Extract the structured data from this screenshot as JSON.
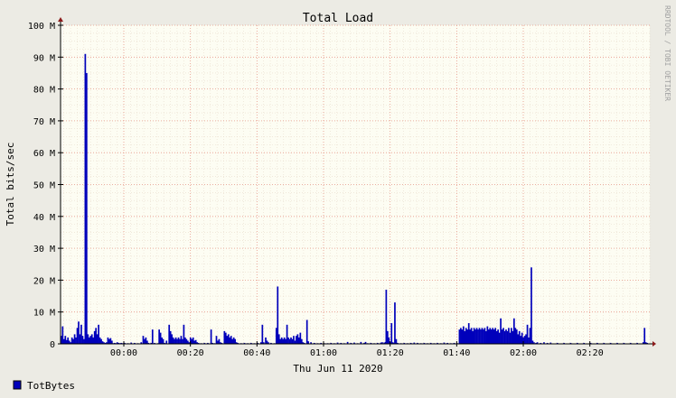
{
  "chart_data": {
    "type": "area",
    "title": "Total Load",
    "ylabel": "Total bits/sec",
    "xlabel": "Thu Jun 11 2020",
    "watermark": "RRDTOOL / TOBI OETIKER",
    "ylim": [
      0,
      100000000
    ],
    "yticks": [
      {
        "v": 0,
        "label": "0"
      },
      {
        "v": 10000000,
        "label": "10 M"
      },
      {
        "v": 20000000,
        "label": "20 M"
      },
      {
        "v": 30000000,
        "label": "30 M"
      },
      {
        "v": 40000000,
        "label": "40 M"
      },
      {
        "v": 50000000,
        "label": "50 M"
      },
      {
        "v": 60000000,
        "label": "60 M"
      },
      {
        "v": 70000000,
        "label": "70 M"
      },
      {
        "v": 80000000,
        "label": "80 M"
      },
      {
        "v": 90000000,
        "label": "90 M"
      },
      {
        "v": 100000000,
        "label": "100 M"
      }
    ],
    "xlim_minutes": [
      -19,
      158
    ],
    "xticks": [
      {
        "m": 0,
        "label": "00:00"
      },
      {
        "m": 20,
        "label": "00:20"
      },
      {
        "m": 40,
        "label": "00:40"
      },
      {
        "m": 60,
        "label": "01:00"
      },
      {
        "m": 80,
        "label": "01:20"
      },
      {
        "m": 100,
        "label": "01:40"
      },
      {
        "m": 120,
        "label": "02:00"
      },
      {
        "m": 140,
        "label": "02:20"
      }
    ],
    "grid": true,
    "series": [
      {
        "name": "TotBytes",
        "color": "#0000bb",
        "points": [
          [
            -19,
            2.5
          ],
          [
            -18.6,
            5.5
          ],
          [
            -18.2,
            1.5
          ],
          [
            -17.8,
            2.5
          ],
          [
            -17.4,
            1.2
          ],
          [
            -17,
            2
          ],
          [
            -16.6,
            1
          ],
          [
            -16.2,
            0.5
          ],
          [
            -15.8,
            2
          ],
          [
            -15.4,
            1.5
          ],
          [
            -15,
            3
          ],
          [
            -14.6,
            2
          ],
          [
            -14.2,
            5
          ],
          [
            -13.8,
            7
          ],
          [
            -13.4,
            3
          ],
          [
            -13,
            6
          ],
          [
            -12.6,
            2.5
          ],
          [
            -12.2,
            1.5
          ],
          [
            -11.8,
            91
          ],
          [
            -11.4,
            85
          ],
          [
            -11,
            3
          ],
          [
            -10.6,
            2
          ],
          [
            -10.2,
            2.5
          ],
          [
            -9.8,
            3
          ],
          [
            -9.4,
            2
          ],
          [
            -9,
            4
          ],
          [
            -8.6,
            5
          ],
          [
            -8.2,
            3
          ],
          [
            -7.8,
            6
          ],
          [
            -7.4,
            2
          ],
          [
            -7,
            1.5
          ],
          [
            -6.6,
            0.8
          ],
          [
            -6.2,
            0.5
          ],
          [
            -5.8,
            0.3
          ],
          [
            -5.4,
            0.5
          ],
          [
            -5,
            2
          ],
          [
            -4.6,
            1.5
          ],
          [
            -4.2,
            1.8
          ],
          [
            -3.8,
            1
          ],
          [
            -3.4,
            0.2
          ],
          [
            -3,
            0.3
          ],
          [
            -2.6,
            0.2
          ],
          [
            -2.2,
            0.5
          ],
          [
            -1.8,
            0.3
          ],
          [
            -1.4,
            0.2
          ],
          [
            -1,
            0.3
          ],
          [
            -0.6,
            0.2
          ],
          [
            0,
            0.3
          ],
          [
            1,
            0.2
          ],
          [
            2,
            0.4
          ],
          [
            3,
            0.3
          ],
          [
            4,
            0.2
          ],
          [
            5,
            0.5
          ],
          [
            5.6,
            2.5
          ],
          [
            6,
            1.5
          ],
          [
            6.4,
            2
          ],
          [
            6.8,
            1
          ],
          [
            7.2,
            0.3
          ],
          [
            8,
            0.3
          ],
          [
            8.4,
            4.5
          ],
          [
            9,
            0.3
          ],
          [
            10,
            0.2
          ],
          [
            10.4,
            4.5
          ],
          [
            10.8,
            3.5
          ],
          [
            11.2,
            2
          ],
          [
            11.6,
            1.5
          ],
          [
            12,
            0.3
          ],
          [
            12.6,
            1
          ],
          [
            13.4,
            6
          ],
          [
            13.8,
            4
          ],
          [
            14.2,
            3
          ],
          [
            14.6,
            2
          ],
          [
            15,
            1.5
          ],
          [
            15.4,
            2
          ],
          [
            15.8,
            1.5
          ],
          [
            16.2,
            2
          ],
          [
            16.6,
            1.5
          ],
          [
            17,
            2.5
          ],
          [
            17.4,
            1.5
          ],
          [
            17.8,
            6
          ],
          [
            18.2,
            2
          ],
          [
            18.6,
            1.5
          ],
          [
            19,
            1
          ],
          [
            19.4,
            0.5
          ],
          [
            19.8,
            2
          ],
          [
            20.2,
            1.5
          ],
          [
            20.6,
            2
          ],
          [
            21,
            1
          ],
          [
            21.4,
            1.2
          ],
          [
            21.8,
            0.5
          ],
          [
            22.2,
            0.3
          ],
          [
            23,
            0.2
          ],
          [
            24,
            0.3
          ],
          [
            25,
            0.3
          ],
          [
            26,
            4.5
          ],
          [
            26.4,
            0.3
          ],
          [
            27,
            0.2
          ],
          [
            27.6,
            2.5
          ],
          [
            28,
            1
          ],
          [
            28.4,
            1.5
          ],
          [
            28.8,
            0.5
          ],
          [
            29.2,
            0.3
          ],
          [
            30,
            4
          ],
          [
            30.4,
            3.5
          ],
          [
            30.8,
            2.5
          ],
          [
            31.2,
            3
          ],
          [
            31.6,
            2
          ],
          [
            32,
            2.5
          ],
          [
            32.4,
            1.5
          ],
          [
            32.8,
            2
          ],
          [
            33.2,
            1.5
          ],
          [
            33.6,
            0.5
          ],
          [
            34,
            0.3
          ],
          [
            35,
            0.2
          ],
          [
            36,
            0.3
          ],
          [
            37,
            0.2
          ],
          [
            38,
            0.3
          ],
          [
            39,
            0.2
          ],
          [
            40,
            0.3
          ],
          [
            41,
            0.5
          ],
          [
            41.4,
            6
          ],
          [
            41.8,
            0.5
          ],
          [
            42.4,
            2
          ],
          [
            42.8,
            1
          ],
          [
            43.2,
            0.5
          ],
          [
            44,
            0.3
          ],
          [
            45,
            0.2
          ],
          [
            45.6,
            5
          ],
          [
            46,
            18
          ],
          [
            46.4,
            3
          ],
          [
            46.8,
            1.5
          ],
          [
            47.2,
            2
          ],
          [
            47.6,
            1.5
          ],
          [
            48,
            2
          ],
          [
            48.4,
            1.5
          ],
          [
            48.8,
            6
          ],
          [
            49.2,
            2
          ],
          [
            49.6,
            1.5
          ],
          [
            50,
            2
          ],
          [
            50.4,
            1.5
          ],
          [
            50.8,
            2.5
          ],
          [
            51.2,
            1
          ],
          [
            51.6,
            2.5
          ],
          [
            52,
            3
          ],
          [
            52.4,
            2
          ],
          [
            52.8,
            3.5
          ],
          [
            53.2,
            1.5
          ],
          [
            53.6,
            0.5
          ],
          [
            54,
            0.3
          ],
          [
            54.8,
            7.5
          ],
          [
            55.2,
            0.8
          ],
          [
            56,
            0.5
          ],
          [
            57,
            0.3
          ],
          [
            58,
            0.2
          ],
          [
            59,
            0.3
          ],
          [
            60,
            0.2
          ],
          [
            61,
            0.2
          ],
          [
            62,
            0.3
          ],
          [
            63,
            0.2
          ],
          [
            64,
            0.4
          ],
          [
            65,
            0.3
          ],
          [
            66,
            0.2
          ],
          [
            67,
            0.6
          ],
          [
            68,
            0.3
          ],
          [
            69,
            0.4
          ],
          [
            70,
            0.2
          ],
          [
            71,
            0.6
          ],
          [
            72,
            0.3
          ],
          [
            72.4,
            0.6
          ],
          [
            73,
            0.2
          ],
          [
            74,
            0.3
          ],
          [
            75,
            0.2
          ],
          [
            76,
            0.3
          ],
          [
            77,
            0.4
          ],
          [
            77.4,
            0.5
          ],
          [
            78,
            0.4
          ],
          [
            78.4,
            0.6
          ],
          [
            78.6,
            17
          ],
          [
            79,
            4
          ],
          [
            79.4,
            2
          ],
          [
            79.8,
            0.5
          ],
          [
            80.2,
            6.5
          ],
          [
            80.6,
            0.5
          ],
          [
            81,
            0.3
          ],
          [
            81.2,
            13
          ],
          [
            81.6,
            1.5
          ],
          [
            82,
            0.3
          ],
          [
            83,
            0.2
          ],
          [
            84,
            0.3
          ],
          [
            85,
            0.2
          ],
          [
            86,
            0.3
          ],
          [
            87,
            0.4
          ],
          [
            88,
            0.3
          ],
          [
            89,
            0.2
          ],
          [
            90,
            0.3
          ],
          [
            91,
            0.2
          ],
          [
            92,
            0.3
          ],
          [
            93,
            0.2
          ],
          [
            94,
            0.3
          ],
          [
            95,
            0.2
          ],
          [
            96,
            0.4
          ],
          [
            97,
            0.3
          ],
          [
            98,
            0.2
          ],
          [
            99,
            0.3
          ],
          [
            100,
            0.2
          ],
          [
            100.6,
            4.5
          ],
          [
            101,
            5
          ],
          [
            101.4,
            4.5
          ],
          [
            101.8,
            5.5
          ],
          [
            102.2,
            4
          ],
          [
            102.6,
            5
          ],
          [
            103,
            4.5
          ],
          [
            103.4,
            6.5
          ],
          [
            103.8,
            4.5
          ],
          [
            104.2,
            5
          ],
          [
            104.6,
            4
          ],
          [
            105,
            5
          ],
          [
            105.4,
            4.5
          ],
          [
            105.8,
            5
          ],
          [
            106.2,
            4.5
          ],
          [
            106.6,
            5
          ],
          [
            107,
            4.5
          ],
          [
            107.4,
            5
          ],
          [
            107.8,
            4.5
          ],
          [
            108.2,
            5
          ],
          [
            108.6,
            4
          ],
          [
            109,
            5.5
          ],
          [
            109.4,
            4.5
          ],
          [
            109.8,
            5
          ],
          [
            110.2,
            4.5
          ],
          [
            110.6,
            5
          ],
          [
            111,
            4.5
          ],
          [
            111.4,
            5
          ],
          [
            111.8,
            4
          ],
          [
            112.2,
            4.5
          ],
          [
            112.6,
            3.5
          ],
          [
            113,
            8
          ],
          [
            113.4,
            4.5
          ],
          [
            113.8,
            5
          ],
          [
            114.2,
            4
          ],
          [
            114.6,
            4.5
          ],
          [
            115,
            4
          ],
          [
            115.4,
            5
          ],
          [
            115.8,
            3.5
          ],
          [
            116.2,
            5
          ],
          [
            116.6,
            4
          ],
          [
            117,
            8
          ],
          [
            117.4,
            5
          ],
          [
            117.8,
            4.5
          ],
          [
            118.2,
            3
          ],
          [
            118.6,
            4
          ],
          [
            119,
            2.5
          ],
          [
            119.4,
            3.5
          ],
          [
            119.8,
            2
          ],
          [
            120.2,
            2.5
          ],
          [
            120.6,
            3
          ],
          [
            121,
            6
          ],
          [
            121.4,
            2
          ],
          [
            121.8,
            5
          ],
          [
            122.2,
            24
          ],
          [
            122.6,
            1
          ],
          [
            123,
            0.5
          ],
          [
            123.6,
            0.3
          ],
          [
            124,
            0.5
          ],
          [
            125,
            0.3
          ],
          [
            126,
            0.5
          ],
          [
            127,
            0.3
          ],
          [
            128,
            0.4
          ],
          [
            130,
            0.3
          ],
          [
            132,
            0.3
          ],
          [
            134,
            0.3
          ],
          [
            136,
            0.3
          ],
          [
            138,
            0.3
          ],
          [
            140,
            0.3
          ],
          [
            142,
            0.3
          ],
          [
            144,
            0.3
          ],
          [
            146,
            0.3
          ],
          [
            148,
            0.3
          ],
          [
            150,
            0.3
          ],
          [
            152,
            0.3
          ],
          [
            154,
            0.3
          ],
          [
            155.8,
            0.5
          ],
          [
            156.2,
            5
          ],
          [
            156.6,
            0.5
          ],
          [
            157,
            0.3
          ]
        ]
      }
    ],
    "legend": "bottom-left"
  }
}
